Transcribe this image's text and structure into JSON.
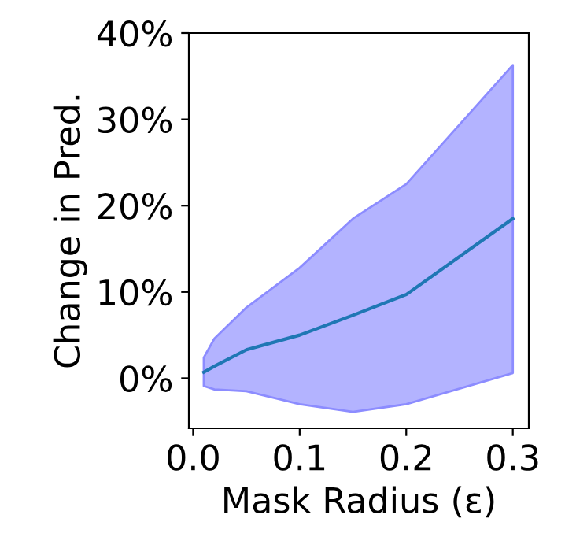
{
  "chart_data": {
    "type": "line",
    "xlabel": "Mask Radius (ε)",
    "ylabel": "Change in Pred.",
    "x": [
      0.01,
      0.02,
      0.05,
      0.1,
      0.15,
      0.2,
      0.3
    ],
    "series": [
      {
        "color": "#1f77b4",
        "values": [
          0.7,
          1.4,
          3.3,
          5.0,
          7.3,
          9.7,
          18.5
        ],
        "lower": [
          -0.9,
          -1.3,
          -1.5,
          -3.0,
          -3.9,
          -3.0,
          0.6
        ],
        "upper": [
          2.4,
          4.6,
          8.2,
          12.8,
          18.5,
          22.5,
          36.3
        ]
      }
    ],
    "xlim": [
      -0.004,
      0.315
    ],
    "xticks": [
      {
        "value": 0,
        "label": "0.0"
      },
      0.1,
      0.2,
      0.3
    ],
    "ylim": [
      -5.8,
      40
    ],
    "yticks": [
      {
        "value": 0,
        "label": "0%"
      },
      {
        "value": 10,
        "label": "10%"
      },
      {
        "value": 20,
        "label": "20%"
      },
      {
        "value": 30,
        "label": "30%"
      },
      {
        "value": 40,
        "label": "40%"
      }
    ],
    "grid": false,
    "legend": false
  }
}
